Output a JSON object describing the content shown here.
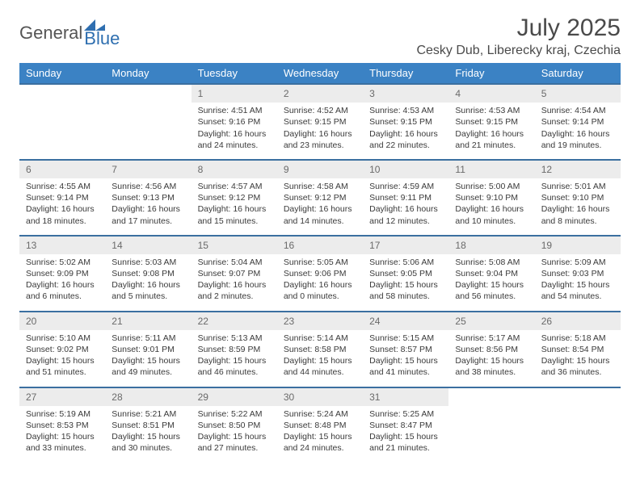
{
  "brand": {
    "word1": "General",
    "word2": "Blue",
    "word2_color": "#2f6fb0",
    "tri_color": "#2f6fb0"
  },
  "title": "July 2025",
  "location": "Cesky Dub, Liberecky kraj, Czechia",
  "colors": {
    "header_bg": "#3b82c4",
    "header_text": "#ffffff",
    "row_border": "#3b6fa0",
    "daynum_bg": "#ececec",
    "daynum_text": "#6a6a6a",
    "body_text": "#3a3a3a",
    "page_bg": "#ffffff"
  },
  "typography": {
    "header_fontsize": 13,
    "title_fontsize": 30,
    "location_fontsize": 16,
    "cell_fontsize": 10.5
  },
  "days": [
    "Sunday",
    "Monday",
    "Tuesday",
    "Wednesday",
    "Thursday",
    "Friday",
    "Saturday"
  ],
  "weeks": [
    [
      {
        "n": "",
        "sr": "",
        "ss": "",
        "dl": ""
      },
      {
        "n": "",
        "sr": "",
        "ss": "",
        "dl": ""
      },
      {
        "n": "1",
        "sr": "Sunrise: 4:51 AM",
        "ss": "Sunset: 9:16 PM",
        "dl": "Daylight: 16 hours and 24 minutes."
      },
      {
        "n": "2",
        "sr": "Sunrise: 4:52 AM",
        "ss": "Sunset: 9:15 PM",
        "dl": "Daylight: 16 hours and 23 minutes."
      },
      {
        "n": "3",
        "sr": "Sunrise: 4:53 AM",
        "ss": "Sunset: 9:15 PM",
        "dl": "Daylight: 16 hours and 22 minutes."
      },
      {
        "n": "4",
        "sr": "Sunrise: 4:53 AM",
        "ss": "Sunset: 9:15 PM",
        "dl": "Daylight: 16 hours and 21 minutes."
      },
      {
        "n": "5",
        "sr": "Sunrise: 4:54 AM",
        "ss": "Sunset: 9:14 PM",
        "dl": "Daylight: 16 hours and 19 minutes."
      }
    ],
    [
      {
        "n": "6",
        "sr": "Sunrise: 4:55 AM",
        "ss": "Sunset: 9:14 PM",
        "dl": "Daylight: 16 hours and 18 minutes."
      },
      {
        "n": "7",
        "sr": "Sunrise: 4:56 AM",
        "ss": "Sunset: 9:13 PM",
        "dl": "Daylight: 16 hours and 17 minutes."
      },
      {
        "n": "8",
        "sr": "Sunrise: 4:57 AM",
        "ss": "Sunset: 9:12 PM",
        "dl": "Daylight: 16 hours and 15 minutes."
      },
      {
        "n": "9",
        "sr": "Sunrise: 4:58 AM",
        "ss": "Sunset: 9:12 PM",
        "dl": "Daylight: 16 hours and 14 minutes."
      },
      {
        "n": "10",
        "sr": "Sunrise: 4:59 AM",
        "ss": "Sunset: 9:11 PM",
        "dl": "Daylight: 16 hours and 12 minutes."
      },
      {
        "n": "11",
        "sr": "Sunrise: 5:00 AM",
        "ss": "Sunset: 9:10 PM",
        "dl": "Daylight: 16 hours and 10 minutes."
      },
      {
        "n": "12",
        "sr": "Sunrise: 5:01 AM",
        "ss": "Sunset: 9:10 PM",
        "dl": "Daylight: 16 hours and 8 minutes."
      }
    ],
    [
      {
        "n": "13",
        "sr": "Sunrise: 5:02 AM",
        "ss": "Sunset: 9:09 PM",
        "dl": "Daylight: 16 hours and 6 minutes."
      },
      {
        "n": "14",
        "sr": "Sunrise: 5:03 AM",
        "ss": "Sunset: 9:08 PM",
        "dl": "Daylight: 16 hours and 5 minutes."
      },
      {
        "n": "15",
        "sr": "Sunrise: 5:04 AM",
        "ss": "Sunset: 9:07 PM",
        "dl": "Daylight: 16 hours and 2 minutes."
      },
      {
        "n": "16",
        "sr": "Sunrise: 5:05 AM",
        "ss": "Sunset: 9:06 PM",
        "dl": "Daylight: 16 hours and 0 minutes."
      },
      {
        "n": "17",
        "sr": "Sunrise: 5:06 AM",
        "ss": "Sunset: 9:05 PM",
        "dl": "Daylight: 15 hours and 58 minutes."
      },
      {
        "n": "18",
        "sr": "Sunrise: 5:08 AM",
        "ss": "Sunset: 9:04 PM",
        "dl": "Daylight: 15 hours and 56 minutes."
      },
      {
        "n": "19",
        "sr": "Sunrise: 5:09 AM",
        "ss": "Sunset: 9:03 PM",
        "dl": "Daylight: 15 hours and 54 minutes."
      }
    ],
    [
      {
        "n": "20",
        "sr": "Sunrise: 5:10 AM",
        "ss": "Sunset: 9:02 PM",
        "dl": "Daylight: 15 hours and 51 minutes."
      },
      {
        "n": "21",
        "sr": "Sunrise: 5:11 AM",
        "ss": "Sunset: 9:01 PM",
        "dl": "Daylight: 15 hours and 49 minutes."
      },
      {
        "n": "22",
        "sr": "Sunrise: 5:13 AM",
        "ss": "Sunset: 8:59 PM",
        "dl": "Daylight: 15 hours and 46 minutes."
      },
      {
        "n": "23",
        "sr": "Sunrise: 5:14 AM",
        "ss": "Sunset: 8:58 PM",
        "dl": "Daylight: 15 hours and 44 minutes."
      },
      {
        "n": "24",
        "sr": "Sunrise: 5:15 AM",
        "ss": "Sunset: 8:57 PM",
        "dl": "Daylight: 15 hours and 41 minutes."
      },
      {
        "n": "25",
        "sr": "Sunrise: 5:17 AM",
        "ss": "Sunset: 8:56 PM",
        "dl": "Daylight: 15 hours and 38 minutes."
      },
      {
        "n": "26",
        "sr": "Sunrise: 5:18 AM",
        "ss": "Sunset: 8:54 PM",
        "dl": "Daylight: 15 hours and 36 minutes."
      }
    ],
    [
      {
        "n": "27",
        "sr": "Sunrise: 5:19 AM",
        "ss": "Sunset: 8:53 PM",
        "dl": "Daylight: 15 hours and 33 minutes."
      },
      {
        "n": "28",
        "sr": "Sunrise: 5:21 AM",
        "ss": "Sunset: 8:51 PM",
        "dl": "Daylight: 15 hours and 30 minutes."
      },
      {
        "n": "29",
        "sr": "Sunrise: 5:22 AM",
        "ss": "Sunset: 8:50 PM",
        "dl": "Daylight: 15 hours and 27 minutes."
      },
      {
        "n": "30",
        "sr": "Sunrise: 5:24 AM",
        "ss": "Sunset: 8:48 PM",
        "dl": "Daylight: 15 hours and 24 minutes."
      },
      {
        "n": "31",
        "sr": "Sunrise: 5:25 AM",
        "ss": "Sunset: 8:47 PM",
        "dl": "Daylight: 15 hours and 21 minutes."
      },
      {
        "n": "",
        "sr": "",
        "ss": "",
        "dl": ""
      },
      {
        "n": "",
        "sr": "",
        "ss": "",
        "dl": ""
      }
    ]
  ]
}
